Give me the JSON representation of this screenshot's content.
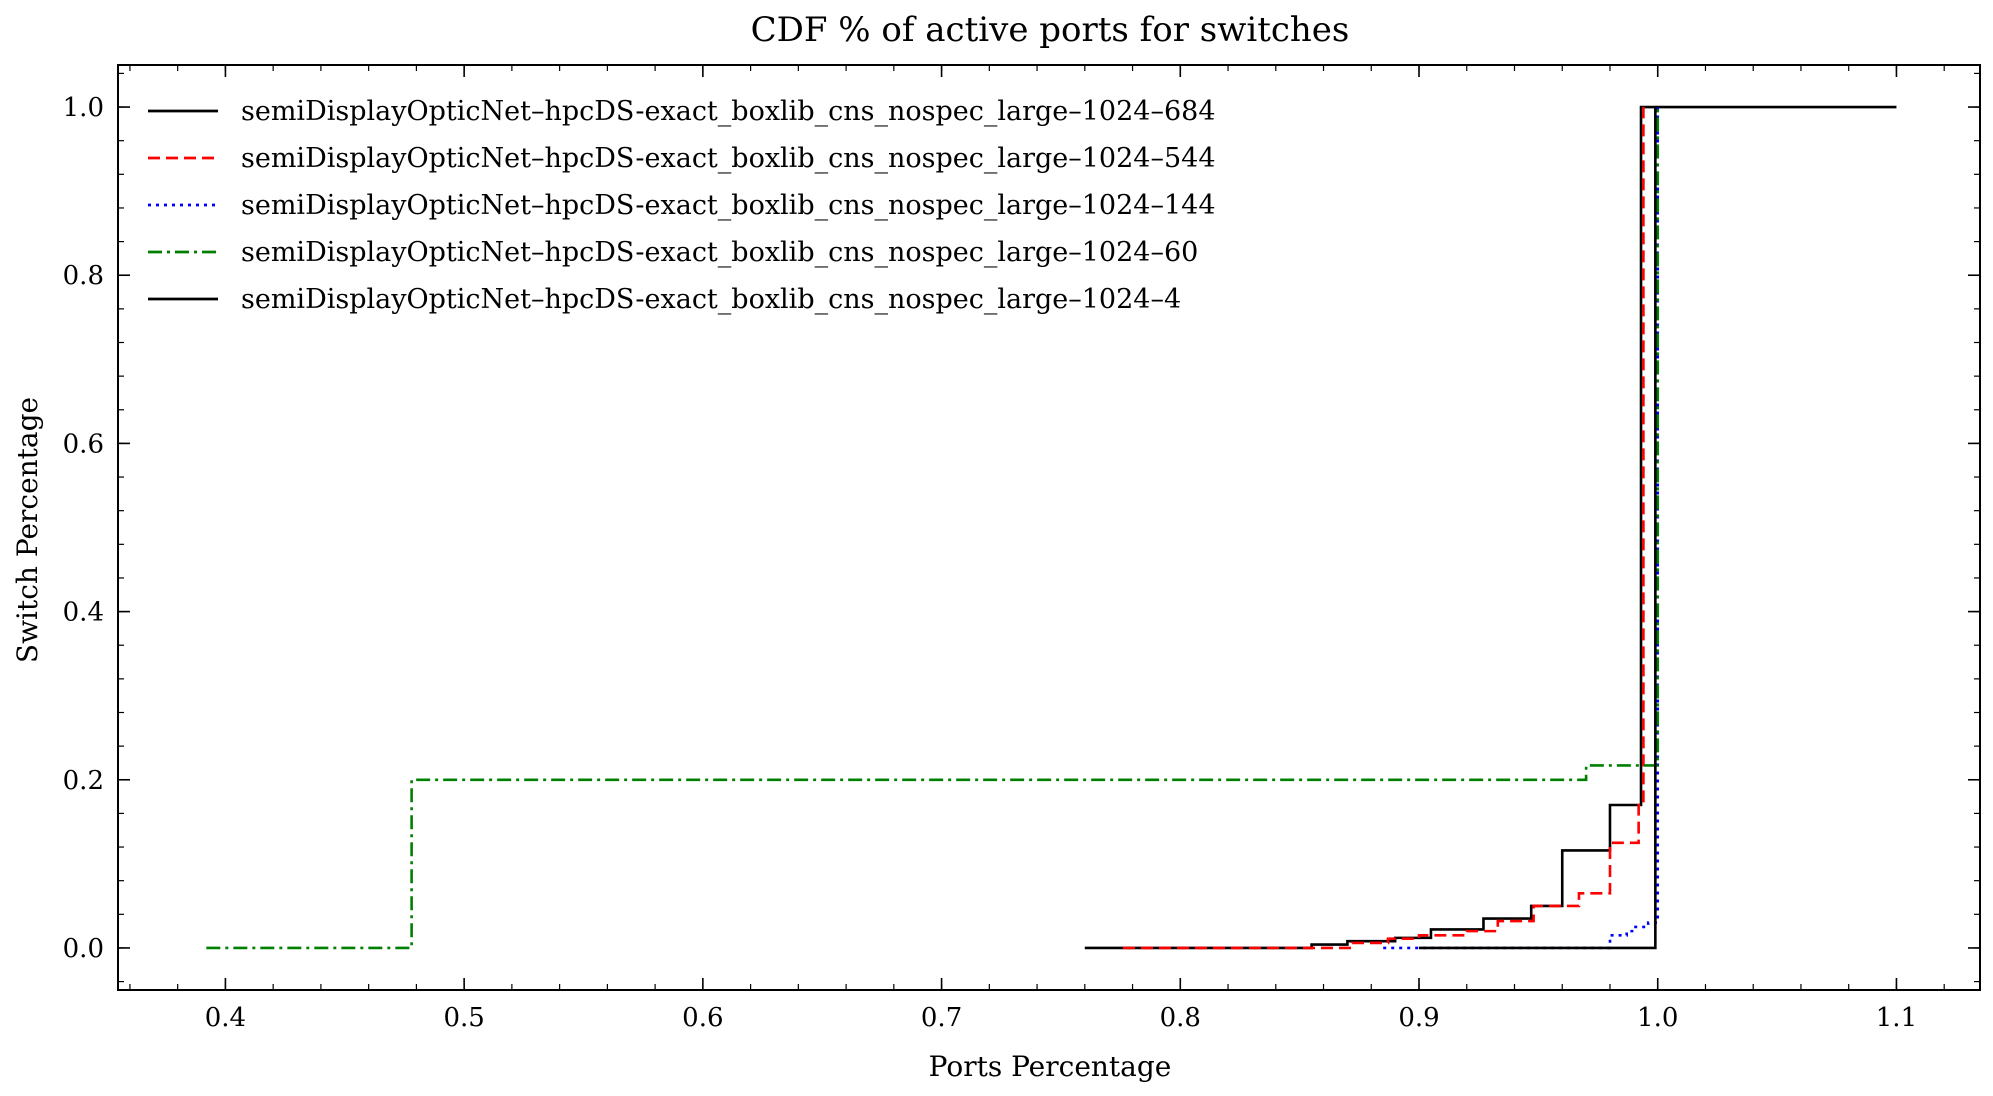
{
  "chart_data": {
    "type": "line",
    "title": "CDF % of active ports for switches",
    "xlabel": "Ports Percentage",
    "ylabel": "Switch Percentage",
    "xlim": [
      0.355,
      1.135
    ],
    "ylim": [
      -0.05,
      1.05
    ],
    "xticks": [
      "0.4",
      "0.5",
      "0.6",
      "0.7",
      "0.8",
      "0.9",
      "1.0",
      "1.1"
    ],
    "yticks": [
      "0.0",
      "0.2",
      "0.4",
      "0.6",
      "0.8",
      "1.0"
    ],
    "grid": false,
    "legend_position": "upper-left",
    "series": [
      {
        "name": "semiDisplayOpticNet–hpcDS-exact_boxlib_cns_nospec_large–1024–684",
        "color": "#000000",
        "style": "solid",
        "x": [
          0.76,
          0.855,
          0.87,
          0.89,
          0.905,
          0.927,
          0.947,
          0.96,
          0.98,
          0.993,
          0.997,
          1.1
        ],
        "y": [
          0.0,
          0.004,
          0.008,
          0.012,
          0.022,
          0.035,
          0.05,
          0.116,
          0.17,
          1.0,
          1.0,
          1.0
        ]
      },
      {
        "name": "semiDisplayOpticNet–hpcDS-exact_boxlib_cns_nospec_large–1024–544",
        "color": "#ff0000",
        "style": "dashed",
        "x": [
          0.776,
          0.872,
          0.887,
          0.9,
          0.92,
          0.933,
          0.948,
          0.967,
          0.98,
          0.992,
          0.994
        ],
        "y": [
          0.0,
          0.006,
          0.011,
          0.015,
          0.02,
          0.032,
          0.05,
          0.065,
          0.125,
          0.17,
          1.0
        ]
      },
      {
        "name": "semiDisplayOpticNet–hpcDS-exact_boxlib_cns_nospec_large–1024–144",
        "color": "#0000ff",
        "style": "dotted",
        "x": [
          0.885,
          0.898,
          0.98,
          0.987,
          0.99,
          0.996,
          1.0
        ],
        "y": [
          0.0,
          0.0,
          0.015,
          0.02,
          0.025,
          0.03,
          1.0
        ]
      },
      {
        "name": "semiDisplayOpticNet–hpcDS-exact_boxlib_cns_nospec_large–1024–60",
        "color": "#008000",
        "style": "dashdot",
        "x": [
          0.392,
          0.478,
          0.97,
          0.997,
          1.0
        ],
        "y": [
          0.0,
          0.2,
          0.217,
          0.217,
          1.0
        ]
      },
      {
        "name": "semiDisplayOpticNet–hpcDS-exact_boxlib_cns_nospec_large–1024–4",
        "color": "#000000",
        "style": "solid",
        "x": [
          0.9,
          0.999
        ],
        "y": [
          0.0,
          1.0
        ]
      }
    ]
  }
}
